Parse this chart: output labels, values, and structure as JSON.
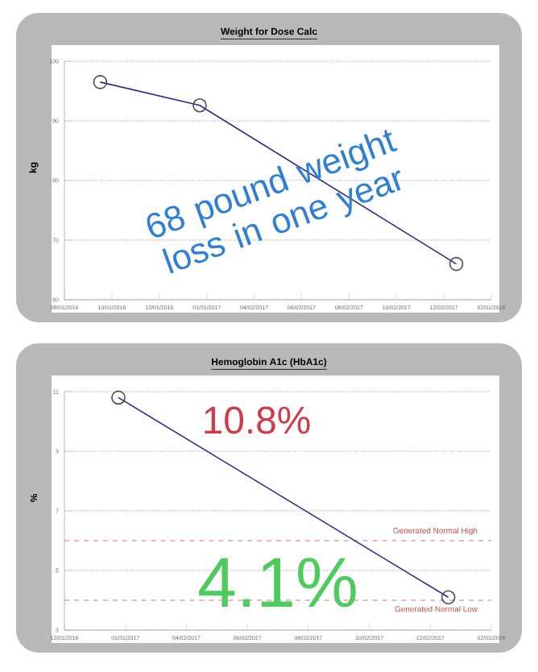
{
  "chart_data": [
    {
      "type": "line",
      "title": "Weight for Dose Calc",
      "ylabel": "kg",
      "x": [
        "2016-09-16",
        "2017-01-22",
        "2017-12-18"
      ],
      "series": [
        {
          "color": "#2b2b8c",
          "values": [
            96.5,
            92.6,
            66
          ]
        }
      ],
      "xlim": [
        "2016-08-01",
        "2018-02-01"
      ],
      "xticks": [
        {
          "value": "2016-08-01",
          "label": "08/01/2016"
        },
        {
          "value": "2016-10-01",
          "label": "10/01/2016"
        },
        {
          "value": "2016-12-01",
          "label": "12/01/2016"
        },
        {
          "value": "2017-01-31",
          "label": "01/31/2017"
        },
        {
          "value": "2017-04-02",
          "label": "04/02/2017"
        },
        {
          "value": "2017-06-02",
          "label": "06/02/2017"
        },
        {
          "value": "2017-08-02",
          "label": "08/02/2017"
        },
        {
          "value": "2017-10-02",
          "label": "10/02/2017"
        },
        {
          "value": "2017-12-02",
          "label": "12/02/2017"
        },
        {
          "value": "2018-02-01",
          "label": "02/01/2018"
        }
      ],
      "ylim": [
        60,
        100
      ],
      "yticks": [
        60,
        70,
        80,
        90,
        100
      ],
      "grid": "y",
      "marker": "circle",
      "line_style": "solid",
      "annotations": [
        "68 pound weight loss in one year"
      ]
    },
    {
      "type": "line",
      "title": "Hemoglobin A1c (HbA1c)",
      "ylabel": "%",
      "x": [
        "2017-01-24",
        "2017-12-20"
      ],
      "series": [
        {
          "color": "#2b2b8c",
          "values": [
            10.8,
            4.1
          ]
        }
      ],
      "xlim": [
        "2016-12-01",
        "2018-02-01"
      ],
      "xticks": [
        {
          "value": "2016-12-01",
          "label": "12/01/2016"
        },
        {
          "value": "2017-01-31",
          "label": "01/31/2017"
        },
        {
          "value": "2017-04-02",
          "label": "04/02/2017"
        },
        {
          "value": "2017-06-02",
          "label": "06/02/2017"
        },
        {
          "value": "2017-08-02",
          "label": "08/02/2017"
        },
        {
          "value": "2017-10-02",
          "label": "10/02/2017"
        },
        {
          "value": "2017-12-02",
          "label": "12/02/2017"
        },
        {
          "value": "2018-02-01",
          "label": "02/01/2018"
        }
      ],
      "ylim": [
        3,
        11
      ],
      "yticks": [
        3,
        5,
        7,
        9,
        11
      ],
      "grid": "y",
      "marker": "circle",
      "line_style": "solid",
      "ref_lines": [
        {
          "axis": "y",
          "value": 6,
          "label": "Generated Normal High",
          "color": "#c0504d",
          "line_style": "dashed"
        },
        {
          "axis": "y",
          "value": 4,
          "label": "Generated Normal Low",
          "color": "#c0504d",
          "line_style": "dashed"
        }
      ],
      "annotations": [
        "10.8%",
        "4.1%"
      ]
    }
  ]
}
